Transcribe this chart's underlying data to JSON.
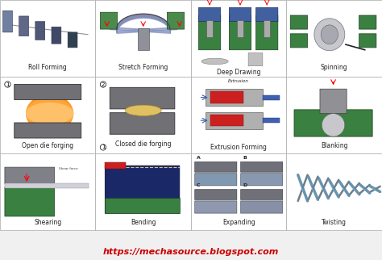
{
  "url": "https://mechasource.blogspot.com",
  "url_color": "#cc0000",
  "bg_color": "#f0f0f0",
  "figsize": [
    4.74,
    3.22
  ],
  "dpi": 100,
  "grid_labels": [
    [
      "Roll Forming",
      "Stretch Forming",
      "Deep Drawing",
      "Spinning"
    ],
    [
      "Open die forging",
      "Closed die forging",
      "Extrusion Forming",
      "Blanking"
    ],
    [
      "Shearing",
      "Bending",
      "Expanding",
      "Twisting"
    ]
  ],
  "label_fontsize": 5.5
}
